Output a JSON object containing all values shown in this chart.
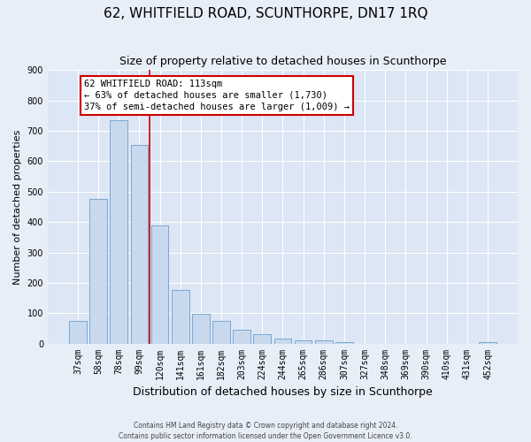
{
  "title": "62, WHITFIELD ROAD, SCUNTHORPE, DN17 1RQ",
  "subtitle": "Size of property relative to detached houses in Scunthorpe",
  "xlabel": "Distribution of detached houses by size in Scunthorpe",
  "ylabel": "Number of detached properties",
  "bar_labels": [
    "37sqm",
    "58sqm",
    "78sqm",
    "99sqm",
    "120sqm",
    "141sqm",
    "161sqm",
    "182sqm",
    "203sqm",
    "224sqm",
    "244sqm",
    "265sqm",
    "286sqm",
    "307sqm",
    "327sqm",
    "348sqm",
    "369sqm",
    "390sqm",
    "410sqm",
    "431sqm",
    "452sqm"
  ],
  "bar_values": [
    75,
    475,
    735,
    655,
    390,
    175,
    97,
    75,
    45,
    32,
    15,
    10,
    10,
    5,
    0,
    0,
    0,
    0,
    0,
    0,
    5
  ],
  "bar_color": "#c9d9ed",
  "bar_edge_color": "#6a9fd0",
  "vline_color": "#cc0000",
  "ylim": [
    0,
    900
  ],
  "yticks": [
    0,
    100,
    200,
    300,
    400,
    500,
    600,
    700,
    800,
    900
  ],
  "annotation_title": "62 WHITFIELD ROAD: 113sqm",
  "annotation_line1": "← 63% of detached houses are smaller (1,730)",
  "annotation_line2": "37% of semi-detached houses are larger (1,009) →",
  "annotation_box_color": "#ffffff",
  "annotation_box_edge": "#cc0000",
  "plot_bg_color": "#dce6f5",
  "fig_bg_color": "#e8eef8",
  "footer_line1": "Contains HM Land Registry data © Crown copyright and database right 2024.",
  "footer_line2": "Contains public sector information licensed under the Open Government Licence v3.0.",
  "grid_color": "#ffffff",
  "title_fontsize": 11,
  "subtitle_fontsize": 9,
  "xlabel_fontsize": 9,
  "ylabel_fontsize": 8,
  "tick_fontsize": 7,
  "annot_fontsize": 7.5,
  "footer_fontsize": 5.5
}
